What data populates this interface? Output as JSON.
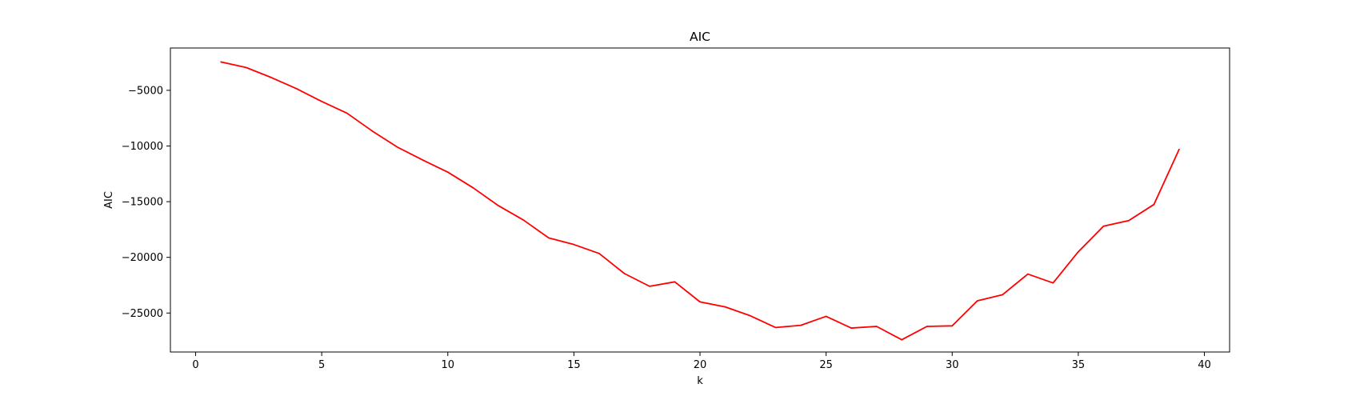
{
  "chart_data": {
    "type": "line",
    "title": "AIC",
    "xlabel": "k",
    "ylabel": "AIC",
    "xlim": [
      -1,
      41
    ],
    "ylim": [
      -28500,
      -1200
    ],
    "xticks": [
      0,
      5,
      10,
      15,
      20,
      25,
      30,
      35,
      40
    ],
    "xtick_labels": [
      "0",
      "5",
      "10",
      "15",
      "20",
      "25",
      "30",
      "35",
      "40"
    ],
    "yticks": [
      -5000,
      -10000,
      -15000,
      -20000,
      -25000
    ],
    "ytick_labels": [
      "−5000",
      "−10000",
      "−15000",
      "−20000",
      "−25000"
    ],
    "grid": false,
    "series": [
      {
        "color": "#ff0000",
        "x": [
          1,
          2,
          3,
          4,
          5,
          6,
          7,
          8,
          9,
          10,
          11,
          12,
          13,
          14,
          15,
          16,
          17,
          18,
          19,
          20,
          21,
          22,
          23,
          24,
          25,
          26,
          27,
          28,
          29,
          30,
          31,
          32,
          33,
          34,
          35,
          36,
          37,
          38,
          39
        ],
        "y": [
          -2450,
          -2950,
          -3850,
          -4850,
          -6000,
          -7050,
          -8650,
          -10100,
          -11250,
          -12350,
          -13750,
          -15350,
          -16650,
          -18250,
          -18850,
          -19650,
          -21450,
          -22600,
          -22200,
          -24000,
          -24450,
          -25250,
          -26300,
          -26100,
          -25300,
          -26350,
          -26200,
          -27400,
          -26200,
          -26150,
          -23900,
          -23350,
          -21500,
          -22300,
          -19500,
          -17200,
          -16700,
          -15250,
          -10300
        ]
      }
    ]
  }
}
